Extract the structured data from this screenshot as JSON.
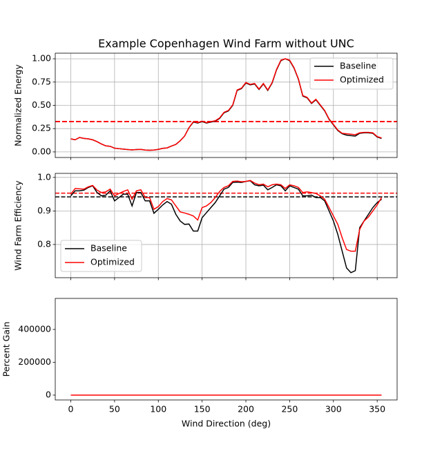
{
  "chart_data": [
    {
      "type": "line",
      "title": "Example Copenhagen Wind Farm without UNC",
      "ylabel": "Normalized Energy",
      "x": [
        0,
        5,
        10,
        15,
        20,
        25,
        30,
        35,
        40,
        45,
        50,
        55,
        60,
        65,
        70,
        75,
        80,
        85,
        90,
        95,
        100,
        105,
        110,
        115,
        120,
        125,
        130,
        135,
        140,
        145,
        150,
        155,
        160,
        165,
        170,
        175,
        180,
        185,
        190,
        195,
        200,
        205,
        210,
        215,
        220,
        225,
        230,
        235,
        240,
        245,
        250,
        255,
        260,
        265,
        270,
        275,
        280,
        285,
        290,
        295,
        300,
        305,
        310,
        315,
        320,
        325,
        330,
        335,
        340,
        345,
        350,
        355
      ],
      "series": [
        {
          "name": "Baseline",
          "color": "#000000",
          "values": [
            0.14,
            0.13,
            0.155,
            0.145,
            0.14,
            0.13,
            0.11,
            0.085,
            0.065,
            0.06,
            0.04,
            0.035,
            0.03,
            0.025,
            0.022,
            0.025,
            0.027,
            0.02,
            0.018,
            0.02,
            0.027,
            0.038,
            0.043,
            0.063,
            0.08,
            0.12,
            0.17,
            0.26,
            0.32,
            0.31,
            0.325,
            0.31,
            0.32,
            0.33,
            0.36,
            0.42,
            0.44,
            0.5,
            0.66,
            0.68,
            0.74,
            0.72,
            0.73,
            0.67,
            0.73,
            0.66,
            0.74,
            0.88,
            0.98,
            1.0,
            0.98,
            0.9,
            0.78,
            0.6,
            0.58,
            0.52,
            0.56,
            0.5,
            0.44,
            0.35,
            0.29,
            0.23,
            0.195,
            0.18,
            0.175,
            0.17,
            0.2,
            0.205,
            0.205,
            0.2,
            0.16,
            0.145
          ]
        },
        {
          "name": "Optimized",
          "color": "#ff0000",
          "values": [
            0.14,
            0.13,
            0.155,
            0.145,
            0.14,
            0.13,
            0.11,
            0.085,
            0.065,
            0.06,
            0.04,
            0.035,
            0.03,
            0.025,
            0.022,
            0.025,
            0.027,
            0.02,
            0.018,
            0.02,
            0.027,
            0.038,
            0.043,
            0.063,
            0.08,
            0.12,
            0.17,
            0.26,
            0.325,
            0.315,
            0.33,
            0.315,
            0.325,
            0.335,
            0.365,
            0.425,
            0.445,
            0.505,
            0.665,
            0.685,
            0.745,
            0.725,
            0.735,
            0.675,
            0.735,
            0.665,
            0.745,
            0.885,
            0.985,
            1.0,
            0.985,
            0.905,
            0.785,
            0.605,
            0.585,
            0.525,
            0.565,
            0.505,
            0.445,
            0.355,
            0.295,
            0.235,
            0.2,
            0.195,
            0.19,
            0.185,
            0.205,
            0.21,
            0.21,
            0.205,
            0.165,
            0.15
          ]
        }
      ],
      "hlines": [
        {
          "value": 0.326,
          "color": "#000000"
        },
        {
          "value": 0.326,
          "color": "#ff0000"
        }
      ],
      "xlim": [
        -17.75,
        372.75
      ],
      "ylim": [
        -0.06,
        1.06
      ],
      "yticks": [
        {
          "value": 0,
          "label": "0.00"
        },
        0.25,
        {
          "value": 0.5,
          "label": "0.50"
        },
        0.75,
        {
          "value": 1,
          "label": "1.00"
        }
      ],
      "grid": true,
      "legend": "upper right"
    },
    {
      "type": "line",
      "ylabel": "Wind Farm Efficiency",
      "x": [
        0,
        5,
        10,
        15,
        20,
        25,
        30,
        35,
        40,
        45,
        50,
        55,
        60,
        65,
        70,
        75,
        80,
        85,
        90,
        95,
        100,
        105,
        110,
        115,
        120,
        125,
        130,
        135,
        140,
        145,
        150,
        155,
        160,
        165,
        170,
        175,
        180,
        185,
        190,
        195,
        200,
        205,
        210,
        215,
        220,
        225,
        230,
        235,
        240,
        245,
        250,
        255,
        260,
        265,
        270,
        275,
        280,
        285,
        290,
        295,
        300,
        305,
        310,
        315,
        320,
        325,
        330,
        335,
        340,
        345,
        350,
        355
      ],
      "series": [
        {
          "name": "Baseline",
          "color": "#000000",
          "values": [
            0.945,
            0.96,
            0.96,
            0.962,
            0.97,
            0.975,
            0.955,
            0.945,
            0.947,
            0.96,
            0.93,
            0.94,
            0.95,
            0.95,
            0.915,
            0.955,
            0.955,
            0.93,
            0.93,
            0.893,
            0.905,
            0.918,
            0.928,
            0.92,
            0.89,
            0.87,
            0.86,
            0.861,
            0.84,
            0.84,
            0.88,
            0.895,
            0.91,
            0.925,
            0.945,
            0.965,
            0.97,
            0.985,
            0.986,
            0.985,
            0.988,
            0.99,
            0.978,
            0.975,
            0.977,
            0.963,
            0.97,
            0.978,
            0.975,
            0.96,
            0.975,
            0.97,
            0.965,
            0.945,
            0.945,
            0.947,
            0.94,
            0.94,
            0.93,
            0.9,
            0.87,
            0.83,
            0.78,
            0.73,
            0.716,
            0.722,
            0.85,
            0.87,
            0.89,
            0.91,
            0.925,
            0.935
          ]
        },
        {
          "name": "Optimized",
          "color": "#ff0000",
          "values": [
            0.95,
            0.967,
            0.966,
            0.965,
            0.972,
            0.976,
            0.962,
            0.955,
            0.957,
            0.965,
            0.945,
            0.952,
            0.958,
            0.963,
            0.935,
            0.96,
            0.963,
            0.94,
            0.94,
            0.905,
            0.913,
            0.928,
            0.937,
            0.933,
            0.915,
            0.897,
            0.894,
            0.89,
            0.885,
            0.873,
            0.91,
            0.915,
            0.925,
            0.94,
            0.958,
            0.97,
            0.975,
            0.988,
            0.989,
            0.987,
            0.988,
            0.991,
            0.983,
            0.978,
            0.98,
            0.972,
            0.978,
            0.98,
            0.978,
            0.967,
            0.978,
            0.975,
            0.97,
            0.955,
            0.957,
            0.955,
            0.952,
            0.945,
            0.935,
            0.91,
            0.885,
            0.86,
            0.82,
            0.785,
            0.78,
            0.78,
            0.845,
            0.87,
            0.882,
            0.9,
            0.918,
            0.94
          ]
        }
      ],
      "hlines": [
        {
          "value": 0.942,
          "color": "#000000"
        },
        {
          "value": 0.953,
          "color": "#ff0000"
        }
      ],
      "xlim": [
        -17.75,
        372.75
      ],
      "ylim": [
        0.701,
        1.012
      ],
      "yticks": [
        0.8,
        0.9,
        {
          "value": 1,
          "label": "1.0"
        }
      ],
      "grid": true,
      "legend": "lower left"
    },
    {
      "type": "line",
      "ylabel": "Percent Gain",
      "xlabel": "Wind Direction (deg)",
      "x": [
        0,
        355
      ],
      "series": [
        {
          "color": "#ff0000",
          "values": [
            0,
            0
          ]
        }
      ],
      "xlim": [
        -17.75,
        372.75
      ],
      "ylim": [
        -29500,
        589000
      ],
      "xticks": [
        0,
        50,
        100,
        150,
        200,
        250,
        300,
        350
      ],
      "yticks": [
        0,
        200000,
        400000
      ],
      "grid": false
    }
  ]
}
